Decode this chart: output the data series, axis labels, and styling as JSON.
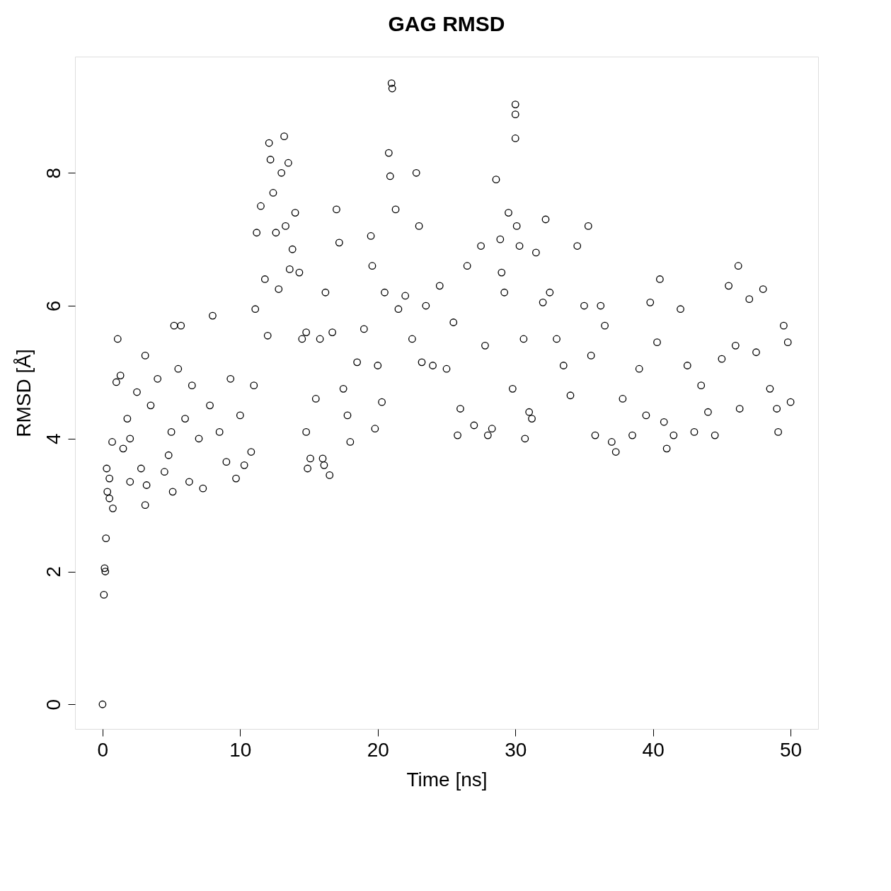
{
  "chart_data": {
    "type": "scatter",
    "title": "GAG RMSD",
    "xlabel": "Time [ns]",
    "ylabel": "RMSD [Å]",
    "xlim": [
      -2,
      52
    ],
    "ylim": [
      -0.37,
      9.75
    ],
    "xticks": [
      0,
      10,
      20,
      30,
      40,
      50
    ],
    "yticks": [
      0,
      2,
      4,
      6,
      8
    ],
    "grid": false,
    "marker": "circle",
    "series": [
      {
        "color": "#000000",
        "x": [
          0,
          0.1,
          0.15,
          0.2,
          0.25,
          0.3,
          0.35,
          0.5,
          0.5,
          0.7,
          0.75,
          1.0,
          1.1,
          1.3,
          1.5,
          1.8,
          2,
          2.0,
          2.5,
          2.8,
          3.1,
          3.1,
          3.2,
          3.5,
          4,
          4.5,
          4.8,
          5,
          5.1,
          5.2,
          5.5,
          5.7,
          6,
          6.3,
          6.5,
          7,
          7.3,
          7.8,
          8.0,
          8.5,
          9,
          9.3,
          9.7,
          10,
          10.3,
          10.8,
          11,
          11.1,
          11.2,
          11.5,
          11.8,
          12,
          12.1,
          12.2,
          12.4,
          12.6,
          12.8,
          13,
          13.2,
          13.3,
          13.5,
          13.6,
          13.8,
          14,
          14.3,
          14.5,
          14.8,
          14.8,
          14.9,
          15.1,
          15.5,
          15.8,
          16,
          16.1,
          16.2,
          16.5,
          16.7,
          17,
          17.2,
          17.5,
          17.8,
          18,
          18.5,
          19,
          19.5,
          19.6,
          19.8,
          20,
          20.3,
          20.5,
          20.8,
          20.9,
          21,
          21.05,
          21.3,
          21.5,
          22,
          22.5,
          22.8,
          23,
          23.2,
          23.5,
          24,
          24.5,
          25,
          25.5,
          25.8,
          26,
          26.5,
          27,
          27.5,
          27.8,
          28,
          28.3,
          28.6,
          28.9,
          29,
          29.2,
          29.5,
          29.8,
          30,
          30,
          30,
          30.1,
          30.3,
          30.6,
          30.7,
          31,
          31.2,
          31.5,
          32,
          32.2,
          32.5,
          33,
          33.5,
          34,
          34.5,
          35,
          35.3,
          35.5,
          35.8,
          36.2,
          36.5,
          37,
          37.3,
          37.8,
          38.5,
          39,
          39.5,
          39.8,
          40.3,
          40.5,
          40.8,
          41,
          41.5,
          42,
          42.5,
          43,
          43.5,
          44,
          44.5,
          45,
          45.5,
          46,
          46.2,
          46.3,
          47,
          47.5,
          48,
          48.5,
          49,
          49.1,
          49.5,
          49.8,
          50
        ],
        "values": [
          0,
          1.65,
          2.05,
          2.0,
          2.5,
          3.55,
          3.2,
          3.4,
          3.1,
          3.95,
          2.95,
          4.85,
          5.5,
          4.95,
          3.85,
          4.3,
          4.0,
          3.35,
          4.7,
          3.55,
          5.25,
          3.0,
          3.3,
          4.5,
          4.9,
          3.5,
          3.75,
          4.1,
          3.2,
          5.7,
          5.05,
          5.7,
          4.3,
          3.35,
          4.8,
          4.0,
          3.25,
          4.5,
          5.85,
          4.1,
          3.65,
          4.9,
          3.4,
          4.35,
          3.6,
          3.8,
          4.8,
          5.95,
          7.1,
          7.5,
          6.4,
          5.55,
          8.45,
          8.2,
          7.7,
          7.1,
          6.25,
          8.0,
          8.55,
          7.2,
          8.15,
          6.55,
          6.85,
          7.4,
          6.5,
          5.5,
          5.6,
          4.1,
          3.55,
          3.7,
          4.6,
          5.5,
          3.7,
          3.6,
          6.2,
          3.45,
          5.6,
          7.45,
          6.95,
          4.75,
          4.35,
          3.95,
          5.15,
          5.65,
          7.05,
          6.6,
          4.15,
          5.1,
          4.55,
          6.2,
          8.3,
          7.95,
          9.35,
          9.27,
          7.45,
          5.95,
          6.15,
          5.5,
          8.0,
          7.2,
          5.15,
          6.0,
          5.1,
          6.3,
          5.05,
          5.75,
          4.05,
          4.45,
          6.6,
          4.2,
          6.9,
          5.4,
          4.05,
          4.15,
          7.9,
          7.0,
          6.5,
          6.2,
          7.4,
          4.75,
          9.03,
          8.88,
          8.52,
          7.2,
          6.9,
          5.5,
          4.0,
          4.4,
          4.3,
          6.8,
          6.05,
          7.3,
          6.2,
          5.5,
          5.1,
          4.65,
          6.9,
          6.0,
          7.2,
          5.25,
          4.05,
          6.0,
          5.7,
          3.95,
          3.8,
          4.6,
          4.05,
          5.05,
          4.35,
          6.05,
          5.45,
          6.4,
          4.25,
          3.85,
          4.05,
          5.95,
          5.1,
          4.1,
          4.8,
          4.4,
          4.05,
          5.2,
          6.3,
          5.4,
          6.6,
          4.45,
          6.1,
          5.3,
          6.25,
          4.75,
          4.45,
          4.1,
          5.7,
          5.45,
          4.55
        ]
      }
    ]
  }
}
